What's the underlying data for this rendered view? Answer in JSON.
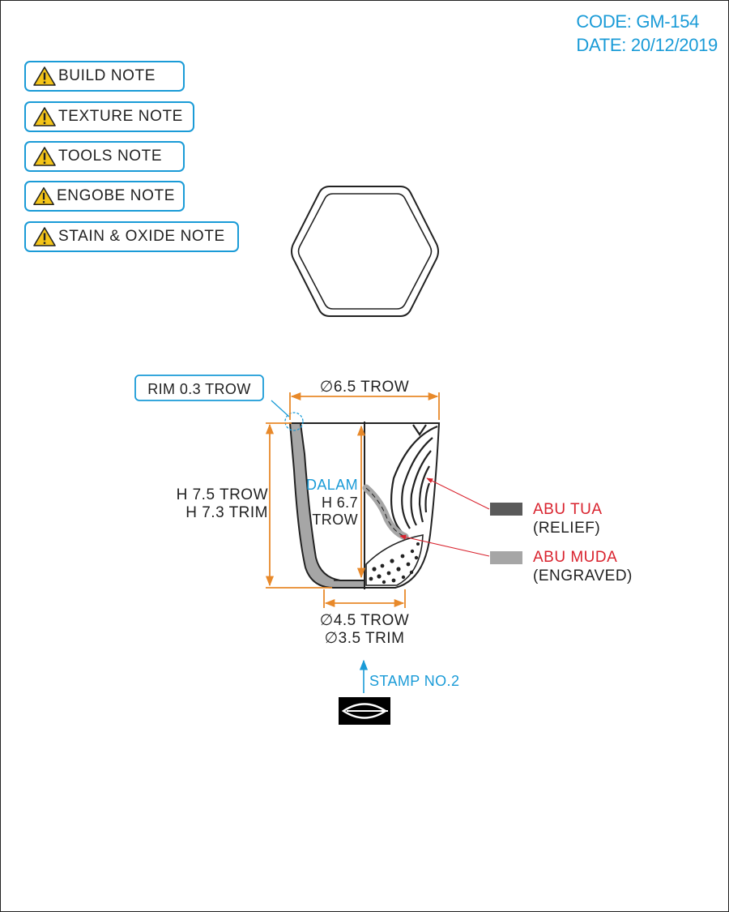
{
  "header": {
    "code": "CODE: GM-154",
    "date": "DATE: 20/12/2019"
  },
  "notes": [
    {
      "label": "BUILD NOTE",
      "name": "build-note-button"
    },
    {
      "label": "TEXTURE NOTE",
      "name": "texture-note-button"
    },
    {
      "label": "TOOLS NOTE",
      "name": "tools-note-button"
    },
    {
      "label": "ENGOBE NOTE",
      "name": "engobe-note-button"
    },
    {
      "label": "STAIN & OXIDE NOTE",
      "name": "stain-oxide-note-button"
    }
  ],
  "drawing": {
    "rim_label": "RIM 0.3 TROW",
    "top_diameter": "∅6.5 TROW",
    "height_trow": "H 7.5 TROW",
    "height_trim": "H 7.3 TRIM",
    "inner_label": "DALAM",
    "inner_height": "H 6.7",
    "inner_unit": "TROW",
    "base_trow": "∅4.5 TROW",
    "base_trim": "∅3.5 TRIM",
    "stamp_label": "STAMP NO.2"
  },
  "legend": [
    {
      "title": "ABU TUA",
      "subtitle": "(RELIEF)",
      "color": "#5a5a5a"
    },
    {
      "title": "ABU MUDA",
      "subtitle": "(ENGRAVED)",
      "color": "#a6a6a6"
    }
  ],
  "colors": {
    "accent": "#1a9bd7",
    "dimension": "#e8892a",
    "legend_text": "#d9232e"
  }
}
